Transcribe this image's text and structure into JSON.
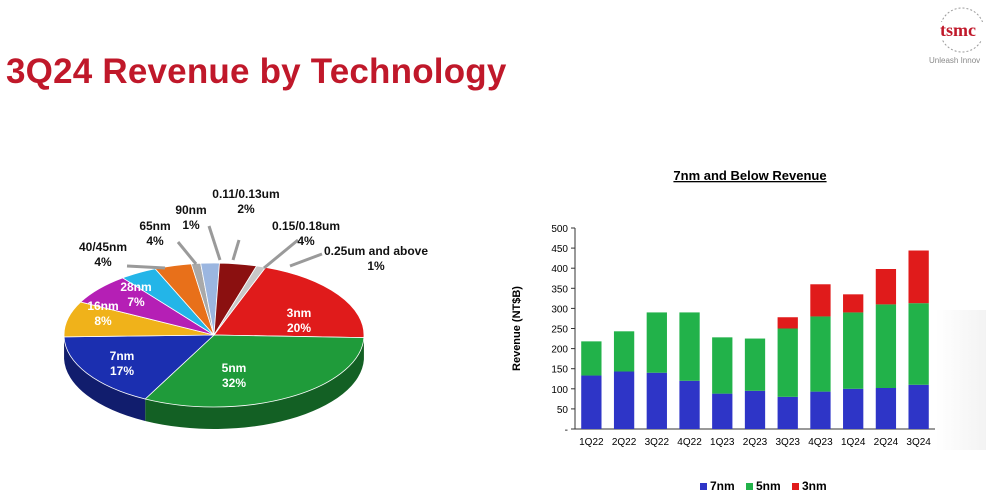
{
  "page": {
    "title": "3Q24 Revenue by Technology"
  },
  "logo": {
    "brand": "tsmc",
    "tagline": "Unleash Innov"
  },
  "chart_data": [
    {
      "type": "pie",
      "title": "",
      "slices": [
        {
          "label": "3nm",
          "value": 20,
          "pct": "20%",
          "color": "#e01b1b"
        },
        {
          "label": "5nm",
          "value": 32,
          "pct": "32%",
          "color": "#1f9b3a"
        },
        {
          "label": "7nm",
          "value": 17,
          "pct": "17%",
          "color": "#1b2fb0"
        },
        {
          "label": "16nm",
          "value": 8,
          "pct": "8%",
          "color": "#f0b21a"
        },
        {
          "label": "28nm",
          "value": 7,
          "pct": "7%",
          "color": "#b51fb5"
        },
        {
          "label": "40/45nm",
          "value": 4,
          "pct": "4%",
          "color": "#23b5e8"
        },
        {
          "label": "65nm",
          "value": 4,
          "pct": "4%",
          "color": "#e8701a"
        },
        {
          "label": "90nm",
          "value": 1,
          "pct": "1%",
          "color": "#a9a9a9"
        },
        {
          "label": "0.11/0.13um",
          "value": 2,
          "pct": "2%",
          "color": "#9bb6e0"
        },
        {
          "label": "0.15/0.18um",
          "value": 4,
          "pct": "4%",
          "color": "#8b1010"
        },
        {
          "label": "0.25um and above",
          "value": 1,
          "pct": "1%",
          "color": "#c8c8c8"
        }
      ]
    },
    {
      "type": "bar",
      "stacked": true,
      "title": "7nm and Below Revenue",
      "ylabel": "Revenue (NT$B)",
      "xlabel": "",
      "ylim": [
        0,
        500
      ],
      "yticks": [
        "-",
        "50",
        "100",
        "150",
        "200",
        "250",
        "300",
        "350",
        "400",
        "450",
        "500"
      ],
      "categories": [
        "1Q22",
        "2Q22",
        "3Q22",
        "4Q22",
        "1Q23",
        "2Q23",
        "3Q23",
        "4Q23",
        "1Q24",
        "2Q24",
        "3Q24"
      ],
      "series": [
        {
          "name": "7nm",
          "color": "#2e35c7",
          "values": [
            133,
            143,
            140,
            120,
            88,
            95,
            80,
            93,
            100,
            102,
            110
          ]
        },
        {
          "name": "5nm",
          "color": "#22b24a",
          "values": [
            85,
            100,
            150,
            170,
            140,
            130,
            170,
            187,
            190,
            208,
            203
          ]
        },
        {
          "name": "3nm",
          "color": "#e01b1b",
          "values": [
            0,
            0,
            0,
            0,
            0,
            0,
            28,
            80,
            45,
            88,
            131
          ]
        }
      ],
      "legend": "bottom"
    }
  ]
}
